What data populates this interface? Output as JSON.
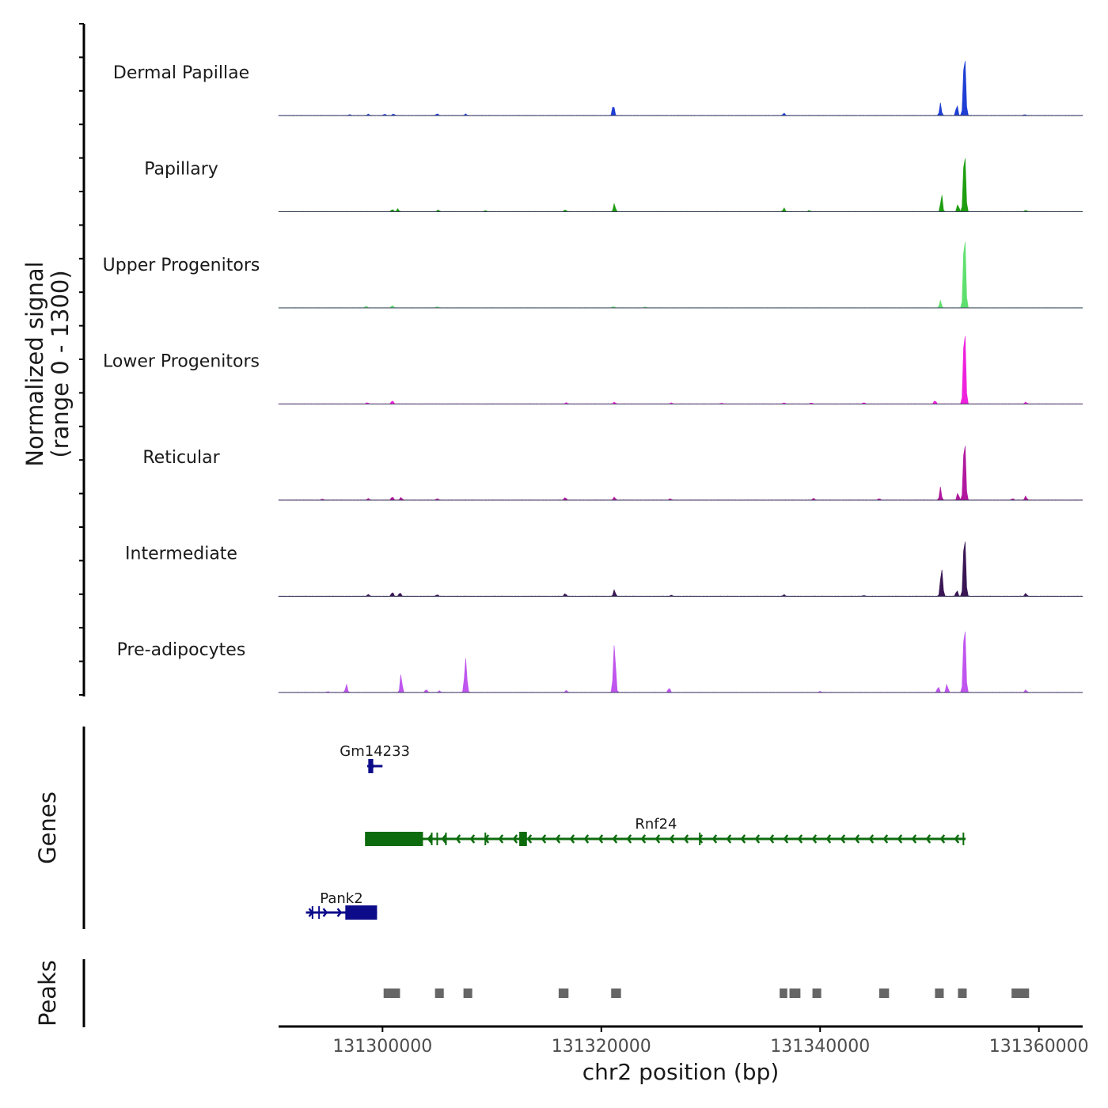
{
  "chart_data": {
    "type": "area",
    "chromosome": "chr2",
    "xlim": [
      131290500,
      131364000
    ],
    "xticks": [
      131300000,
      131320000,
      131340000,
      131360000
    ],
    "xtick_labels": [
      "131300000",
      "131320000",
      "131340000",
      "131360000"
    ],
    "xlabel": "chr2 position (bp)",
    "ylabel_line1": "Normalized signal",
    "ylabel_line2": "(range 0 - 1300)",
    "ylim": [
      0,
      1300
    ],
    "tracks": [
      {
        "name": "Dermal Papillae",
        "color": "#1f3fd4",
        "peaks": [
          [
            131297000,
            15
          ],
          [
            131298700,
            25
          ],
          [
            131300200,
            25
          ],
          [
            131301000,
            30
          ],
          [
            131305000,
            35
          ],
          [
            131307600,
            28
          ],
          [
            131321100,
            230
          ],
          [
            131336700,
            45
          ],
          [
            131351000,
            240
          ],
          [
            131352500,
            220
          ],
          [
            131353200,
            1230
          ],
          [
            131358700,
            15
          ]
        ]
      },
      {
        "name": "Papillary",
        "color": "#1e9e10",
        "peaks": [
          [
            131300900,
            45
          ],
          [
            131301400,
            55
          ],
          [
            131305100,
            35
          ],
          [
            131309400,
            18
          ],
          [
            131316700,
            35
          ],
          [
            131321200,
            160
          ],
          [
            131336700,
            70
          ],
          [
            131339000,
            20
          ],
          [
            131351100,
            350
          ],
          [
            131352600,
            150
          ],
          [
            131353200,
            1200
          ],
          [
            131358800,
            25
          ]
        ]
      },
      {
        "name": "Upper Progenitors",
        "color": "#5ee06e",
        "peaks": [
          [
            131298500,
            30
          ],
          [
            131300900,
            45
          ],
          [
            131305000,
            20
          ],
          [
            131321100,
            25
          ],
          [
            131324000,
            15
          ],
          [
            131351000,
            140
          ],
          [
            131353200,
            1480
          ]
        ]
      },
      {
        "name": "Lower Progenitors",
        "color": "#ee22dd",
        "peaks": [
          [
            131298600,
            25
          ],
          [
            131300900,
            70
          ],
          [
            131316800,
            25
          ],
          [
            131321200,
            35
          ],
          [
            131326400,
            20
          ],
          [
            131331000,
            15
          ],
          [
            131336700,
            20
          ],
          [
            131339200,
            20
          ],
          [
            131344000,
            25
          ],
          [
            131350500,
            70
          ],
          [
            131353200,
            1530
          ],
          [
            131358800,
            35
          ]
        ]
      },
      {
        "name": "Reticular",
        "color": "#b0189e",
        "peaks": [
          [
            131294500,
            20
          ],
          [
            131298700,
            30
          ],
          [
            131300900,
            70
          ],
          [
            131301700,
            55
          ],
          [
            131305000,
            30
          ],
          [
            131316700,
            55
          ],
          [
            131321200,
            60
          ],
          [
            131326300,
            25
          ],
          [
            131339400,
            35
          ],
          [
            131345400,
            30
          ],
          [
            131351000,
            250
          ],
          [
            131352600,
            150
          ],
          [
            131353200,
            1220
          ],
          [
            131357600,
            30
          ],
          [
            131358800,
            80
          ]
        ]
      },
      {
        "name": "Intermediate",
        "color": "#3a1654",
        "peaks": [
          [
            131298700,
            35
          ],
          [
            131300900,
            85
          ],
          [
            131301600,
            75
          ],
          [
            131305000,
            30
          ],
          [
            131316700,
            55
          ],
          [
            131321200,
            130
          ],
          [
            131326400,
            20
          ],
          [
            131336700,
            30
          ],
          [
            131344000,
            15
          ],
          [
            131351100,
            540
          ],
          [
            131352500,
            120
          ],
          [
            131353200,
            1230
          ],
          [
            131358800,
            60
          ]
        ]
      },
      {
        "name": "Pre-adipocytes",
        "color": "#bf55ee",
        "peaks": [
          [
            131295000,
            15
          ],
          [
            131296700,
            160
          ],
          [
            131301700,
            370
          ],
          [
            131304000,
            60
          ],
          [
            131305200,
            30
          ],
          [
            131307600,
            650
          ],
          [
            131316800,
            40
          ],
          [
            131321200,
            930
          ],
          [
            131326200,
            95
          ],
          [
            131340000,
            20
          ],
          [
            131350800,
            120
          ],
          [
            131351600,
            170
          ],
          [
            131353200,
            1370
          ],
          [
            131358800,
            50
          ]
        ]
      }
    ],
    "genes": [
      {
        "name": "Gm14233",
        "color": "#0c0c8a",
        "strand": "+",
        "start": 131298600,
        "end": 131300000,
        "cds": [
          [
            131298700,
            131299150
          ]
        ]
      },
      {
        "name": "Rnf24",
        "color": "#0c6b0c",
        "strand": "-",
        "start": 131298400,
        "end": 131353300,
        "cds": [
          [
            131298400,
            131303700
          ],
          [
            131312500,
            131313200
          ]
        ],
        "exon_marks": [
          131304500,
          131305000,
          131305800,
          131309400,
          131329000,
          131353100
        ]
      },
      {
        "name": "Pank2",
        "color": "#0c0c8a",
        "strand": "+",
        "start": 131293000,
        "end": 131299500,
        "cds": [
          [
            131296600,
            131299500
          ]
        ],
        "exon_marks": [
          131293600,
          131294200
        ]
      }
    ],
    "peaks": [
      [
        131300100,
        131301600
      ],
      [
        131304800,
        131305600
      ],
      [
        131307400,
        131308200
      ],
      [
        131316100,
        131317000
      ],
      [
        131320900,
        131321800
      ],
      [
        131336300,
        131337000
      ],
      [
        131337200,
        131338200
      ],
      [
        131339300,
        131340100
      ],
      [
        131345400,
        131346300
      ],
      [
        131350500,
        131351300
      ],
      [
        131352600,
        131353400
      ],
      [
        131357500,
        131359100
      ]
    ],
    "panel_labels": {
      "genes": "Genes",
      "peaks": "Peaks"
    }
  }
}
